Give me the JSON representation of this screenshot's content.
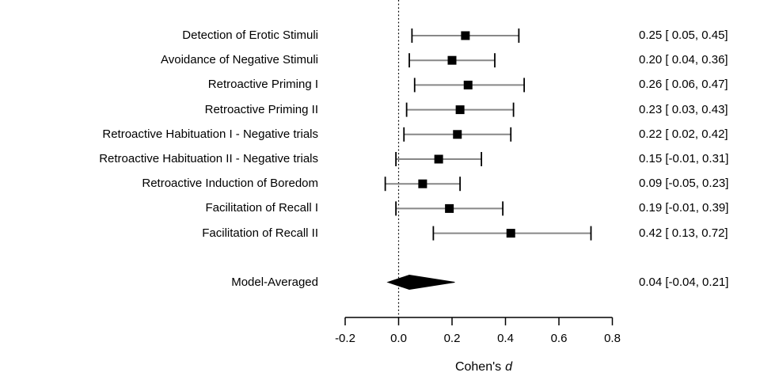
{
  "chart_data": {
    "type": "forest",
    "title": "",
    "xlabel": "Cohen's d",
    "xlabel_main": "Cohen's",
    "xlabel_italic": "d",
    "xlim": [
      -0.2,
      0.8
    ],
    "tick_values": [
      -0.2,
      0.0,
      0.2,
      0.4,
      0.6,
      0.8
    ],
    "tick_labels": [
      "-0.2",
      "0.0",
      "0.2",
      "0.4",
      "0.6",
      "0.8"
    ],
    "zero_reference_line": 0.0,
    "grid": false,
    "legend": false,
    "colors": {
      "marker": "#000000",
      "ci_line": "#878787",
      "ci_cap": "#000000",
      "axis": "#000000",
      "diamond": "#000000",
      "text": "#000000",
      "background": "#ffffff"
    },
    "studies": [
      {
        "label": "Detection of Erotic Stimuli",
        "estimate": 0.25,
        "ci_lower": 0.05,
        "ci_upper": 0.45,
        "annotation": "0.25 [ 0.05, 0.45]"
      },
      {
        "label": "Avoidance of Negative Stimuli",
        "estimate": 0.2,
        "ci_lower": 0.04,
        "ci_upper": 0.36,
        "annotation": "0.20 [ 0.04, 0.36]"
      },
      {
        "label": "Retroactive Priming I",
        "estimate": 0.26,
        "ci_lower": 0.06,
        "ci_upper": 0.47,
        "annotation": "0.26 [ 0.06, 0.47]"
      },
      {
        "label": "Retroactive Priming II",
        "estimate": 0.23,
        "ci_lower": 0.03,
        "ci_upper": 0.43,
        "annotation": "0.23 [ 0.03, 0.43]"
      },
      {
        "label": "Retroactive Habituation I - Negative trials",
        "estimate": 0.22,
        "ci_lower": 0.02,
        "ci_upper": 0.42,
        "annotation": "0.22 [ 0.02, 0.42]"
      },
      {
        "label": "Retroactive Habituation II - Negative trials",
        "estimate": 0.15,
        "ci_lower": -0.01,
        "ci_upper": 0.31,
        "annotation": "0.15 [-0.01, 0.31]"
      },
      {
        "label": "Retroactive Induction of Boredom",
        "estimate": 0.09,
        "ci_lower": -0.05,
        "ci_upper": 0.23,
        "annotation": "0.09 [-0.05, 0.23]"
      },
      {
        "label": "Facilitation of Recall I",
        "estimate": 0.19,
        "ci_lower": -0.01,
        "ci_upper": 0.39,
        "annotation": "0.19 [-0.01, 0.39]"
      },
      {
        "label": "Facilitation of Recall II",
        "estimate": 0.42,
        "ci_lower": 0.13,
        "ci_upper": 0.72,
        "annotation": "0.42 [ 0.13, 0.72]"
      }
    ],
    "summary": {
      "label": "Model-Averaged",
      "estimate": 0.04,
      "ci_lower": -0.04,
      "ci_upper": 0.21,
      "annotation": "0.04 [-0.04, 0.21]"
    }
  }
}
